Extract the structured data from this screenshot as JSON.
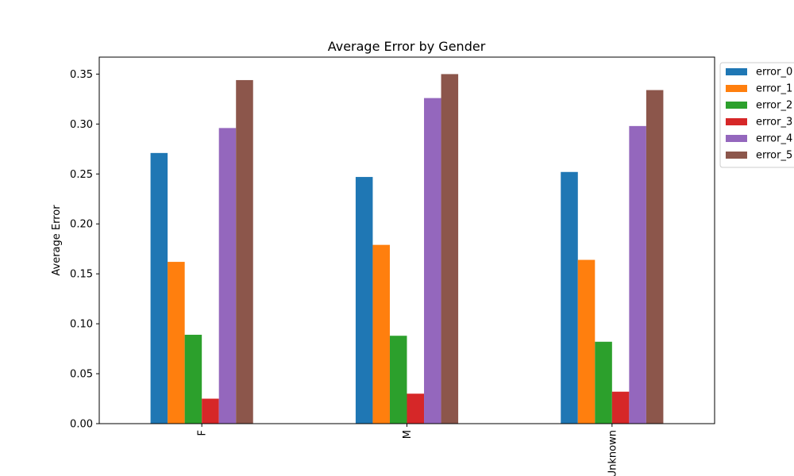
{
  "chart_data": {
    "type": "bar",
    "title": "Average Error by Gender",
    "xlabel": "",
    "ylabel": "Average Error",
    "categories": [
      "F",
      "M",
      "Unknown"
    ],
    "ylim": [
      0,
      0.367
    ],
    "yticks": [
      0.0,
      0.05,
      0.1,
      0.15,
      0.2,
      0.25,
      0.3,
      0.35
    ],
    "ytick_labels": [
      "0.00",
      "0.05",
      "0.10",
      "0.15",
      "0.20",
      "0.25",
      "0.30",
      "0.35"
    ],
    "grid": false,
    "legend_position": "outside top-right",
    "series": [
      {
        "name": "error_0",
        "color": "#1f77b4",
        "values": [
          0.271,
          0.247,
          0.252
        ]
      },
      {
        "name": "error_1",
        "color": "#ff7f0e",
        "values": [
          0.162,
          0.179,
          0.164
        ]
      },
      {
        "name": "error_2",
        "color": "#2ca02c",
        "values": [
          0.089,
          0.088,
          0.082
        ]
      },
      {
        "name": "error_3",
        "color": "#d62728",
        "values": [
          0.025,
          0.03,
          0.032
        ]
      },
      {
        "name": "error_4",
        "color": "#9467bd",
        "values": [
          0.296,
          0.326,
          0.298
        ]
      },
      {
        "name": "error_5",
        "color": "#8c564b",
        "values": [
          0.344,
          0.35,
          0.334
        ]
      }
    ]
  }
}
